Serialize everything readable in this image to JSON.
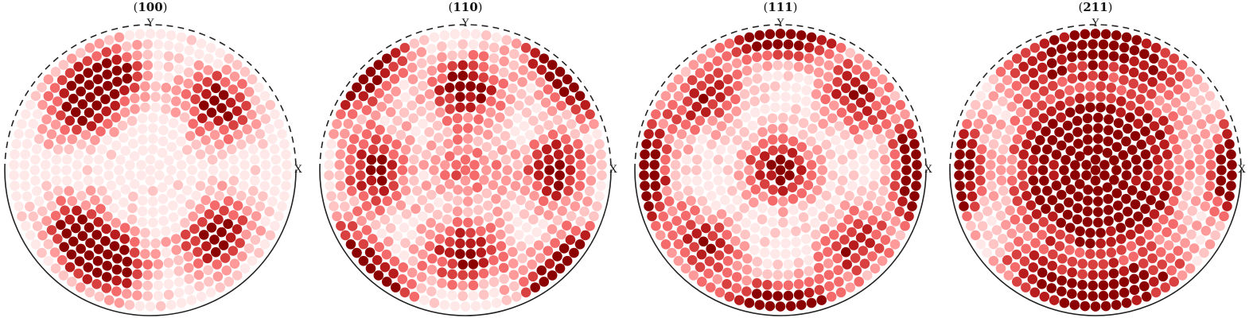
{
  "figure": {
    "type": "pole_figure"
  },
  "chart_data": [
    {
      "type": "scatter",
      "title_prefix": "(",
      "title_indices": "100",
      "title_suffix": ")",
      "xlabel": "X",
      "ylabel": "Y",
      "colors": [
        "#ffe8e8",
        "#ffc4c4",
        "#ff9a9a",
        "#f56a6a",
        "#d94040",
        "#b81c1c",
        "#8b0000"
      ],
      "density_max": 1.0,
      "poles": [
        {
          "azimuth_deg": 45,
          "polar_deg": 55,
          "peak": 1.0
        },
        {
          "azimuth_deg": 135,
          "polar_deg": 55,
          "peak": 1.0
        },
        {
          "azimuth_deg": 225,
          "polar_deg": 55,
          "peak": 1.0
        },
        {
          "azimuth_deg": 315,
          "polar_deg": 55,
          "peak": 1.0
        },
        {
          "azimuth_deg": 115,
          "polar_deg": 60,
          "peak": 0.9
        },
        {
          "azimuth_deg": 245,
          "polar_deg": 60,
          "peak": 0.9
        }
      ]
    },
    {
      "type": "scatter",
      "title_prefix": "(",
      "title_indices": "110",
      "title_suffix": ")",
      "xlabel": "X",
      "ylabel": "Y",
      "colors": [
        "#ffe8e8",
        "#ffc4c4",
        "#ff9a9a",
        "#f56a6a",
        "#d94040",
        "#b81c1c",
        "#8b0000"
      ],
      "density_max": 1.0,
      "poles": [
        {
          "azimuth_deg": 0,
          "polar_deg": 0,
          "peak": 0.55
        },
        {
          "azimuth_deg": 90,
          "polar_deg": 48,
          "peak": 1.0
        },
        {
          "azimuth_deg": 270,
          "polar_deg": 48,
          "peak": 1.0
        },
        {
          "azimuth_deg": 0,
          "polar_deg": 52,
          "peak": 0.95
        },
        {
          "azimuth_deg": 180,
          "polar_deg": 52,
          "peak": 1.0
        },
        {
          "azimuth_deg": 45,
          "polar_deg": 90,
          "peak": 0.8
        },
        {
          "azimuth_deg": 135,
          "polar_deg": 90,
          "peak": 0.8
        },
        {
          "azimuth_deg": 225,
          "polar_deg": 90,
          "peak": 0.8
        },
        {
          "azimuth_deg": 315,
          "polar_deg": 90,
          "peak": 0.8
        }
      ]
    },
    {
      "type": "scatter",
      "title_prefix": "(",
      "title_indices": "111",
      "title_suffix": ")",
      "xlabel": "X",
      "ylabel": "Y",
      "colors": [
        "#ffe8e8",
        "#ffc4c4",
        "#ff9a9a",
        "#f56a6a",
        "#d94040",
        "#b81c1c",
        "#8b0000"
      ],
      "density_max": 1.0,
      "poles": [
        {
          "azimuth_deg": 0,
          "polar_deg": 0,
          "peak": 1.0
        },
        {
          "azimuth_deg": 90,
          "polar_deg": 88,
          "peak": 1.0
        },
        {
          "azimuth_deg": 270,
          "polar_deg": 88,
          "peak": 1.0
        },
        {
          "azimuth_deg": 0,
          "polar_deg": 86,
          "peak": 0.95
        },
        {
          "azimuth_deg": 180,
          "polar_deg": 86,
          "peak": 0.95
        },
        {
          "azimuth_deg": 45,
          "polar_deg": 62,
          "peak": 0.85
        },
        {
          "azimuth_deg": 135,
          "polar_deg": 62,
          "peak": 0.85
        },
        {
          "azimuth_deg": 225,
          "polar_deg": 62,
          "peak": 0.85
        },
        {
          "azimuth_deg": 315,
          "polar_deg": 62,
          "peak": 0.85
        }
      ]
    },
    {
      "type": "scatter",
      "title_prefix": "(",
      "title_indices": "211",
      "title_suffix": ")",
      "xlabel": "X",
      "ylabel": "Y",
      "colors": [
        "#ffe8e8",
        "#ffc4c4",
        "#ff9a9a",
        "#f56a6a",
        "#d94040",
        "#b81c1c",
        "#8b0000"
      ],
      "density_max": 1.0,
      "poles": [
        {
          "azimuth_deg": 0,
          "polar_deg": 0,
          "peak": 0.9
        },
        {
          "azimuth_deg": 90,
          "polar_deg": 30,
          "peak": 0.85
        },
        {
          "azimuth_deg": 270,
          "polar_deg": 30,
          "peak": 0.95
        },
        {
          "azimuth_deg": 30,
          "polar_deg": 35,
          "peak": 0.8
        },
        {
          "azimuth_deg": 210,
          "polar_deg": 35,
          "peak": 0.8
        },
        {
          "azimuth_deg": 150,
          "polar_deg": 35,
          "peak": 0.8
        },
        {
          "azimuth_deg": 330,
          "polar_deg": 35,
          "peak": 0.8
        },
        {
          "azimuth_deg": 90,
          "polar_deg": 75,
          "peak": 0.9
        },
        {
          "azimuth_deg": 270,
          "polar_deg": 75,
          "peak": 0.9
        },
        {
          "azimuth_deg": 0,
          "polar_deg": 85,
          "peak": 0.85
        },
        {
          "azimuth_deg": 180,
          "polar_deg": 85,
          "peak": 0.85
        },
        {
          "azimuth_deg": 60,
          "polar_deg": 70,
          "peak": 0.7
        },
        {
          "azimuth_deg": 120,
          "polar_deg": 70,
          "peak": 0.7
        },
        {
          "azimuth_deg": 240,
          "polar_deg": 70,
          "peak": 0.7
        },
        {
          "azimuth_deg": 300,
          "polar_deg": 70,
          "peak": 0.7
        }
      ]
    }
  ]
}
